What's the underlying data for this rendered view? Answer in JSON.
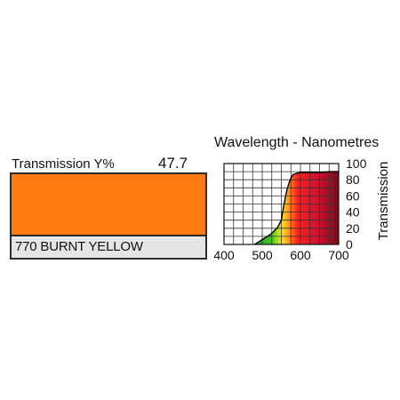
{
  "filter": {
    "transmission_label": "Transmission Y%",
    "transmission_value": "47.7",
    "name": "770 BURNT YELLOW",
    "swatch_color": "#ff7a10"
  },
  "chart_data": {
    "type": "area",
    "title": "Wavelength - Nanometres",
    "xlabel": "",
    "ylabel": "Transmission",
    "xlim": [
      400,
      700
    ],
    "ylim": [
      0,
      100
    ],
    "grid": true,
    "x_ticks": [
      400,
      500,
      600,
      700
    ],
    "y_ticks": [
      0,
      20,
      40,
      60,
      80,
      100
    ],
    "series": [
      {
        "x": [
          480,
          490,
          500,
          510,
          520,
          530,
          540,
          550,
          555,
          560,
          565,
          570,
          575,
          580,
          590,
          600,
          620,
          650,
          680,
          700
        ],
        "values": [
          0,
          3,
          6,
          9,
          12,
          16,
          21,
          30,
          44,
          57,
          68,
          76,
          82,
          86,
          88,
          89,
          89,
          89,
          90,
          90
        ]
      }
    ]
  }
}
